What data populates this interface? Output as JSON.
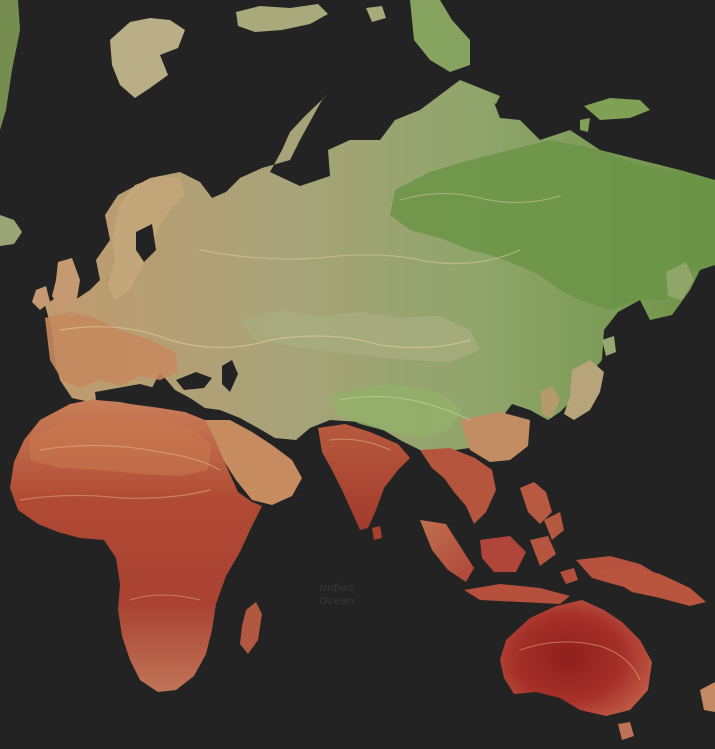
{
  "map": {
    "theme": "dark-basemap-temperature",
    "background_color": "#232323",
    "ocean_label": {
      "line1": "Indian",
      "line2": "Ocean",
      "color": "#3a3a3a"
    },
    "palette": {
      "cold": "#5e8a3c",
      "cool": "#8fa56a",
      "mild": "#b9a67c",
      "warm": "#c98a5a",
      "hot": "#b8503a",
      "hottest": "#9a2a22"
    }
  }
}
